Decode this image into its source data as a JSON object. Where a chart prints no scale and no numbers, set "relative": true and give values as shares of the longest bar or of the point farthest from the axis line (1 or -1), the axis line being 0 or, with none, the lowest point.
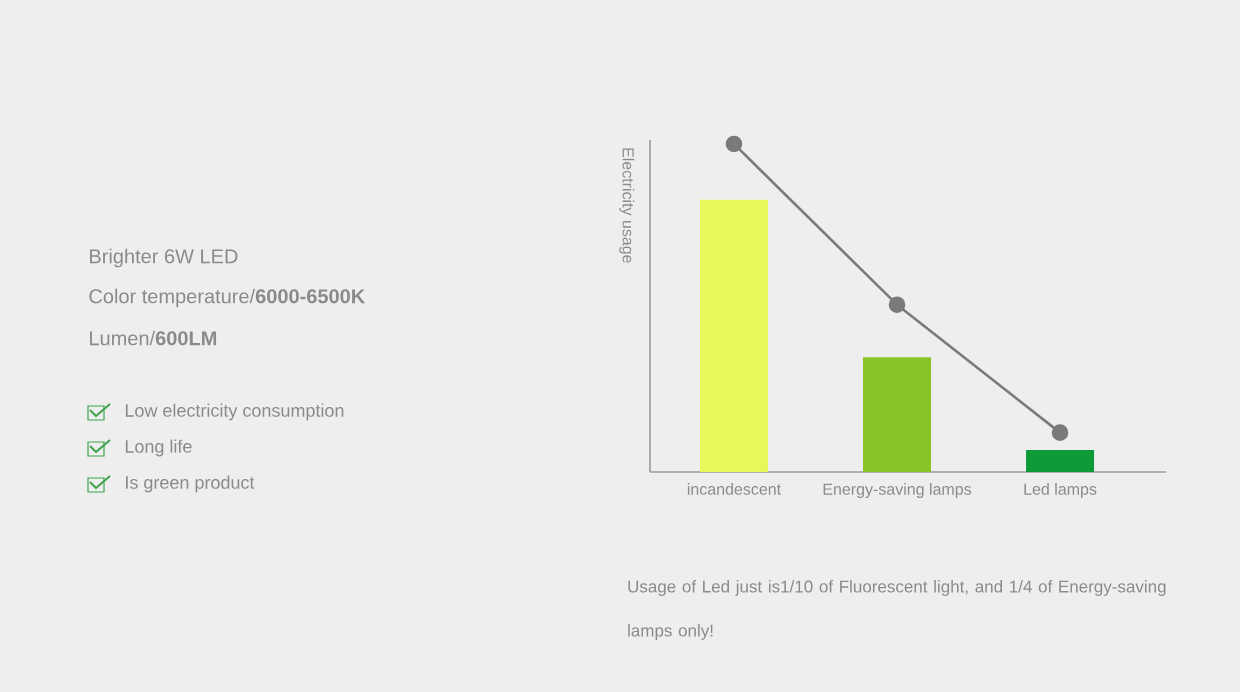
{
  "chart_data": {
    "type": "bar",
    "relative": true,
    "ylabel": "Electricity usage",
    "categories": [
      "incandescent",
      "Energy-saving lamps",
      "Led lamps"
    ],
    "series": [
      {
        "colors": [
          "#e8f75a",
          "#88c425",
          "#0f9a3a"
        ],
        "values": [
          0.83,
          0.35,
          0.067
        ]
      },
      {
        "type": "line",
        "color": "#7a7a7a",
        "marker": "circle",
        "values": [
          1,
          0.51,
          0.12
        ]
      }
    ],
    "annotations": [
      "Brighter 6W LED",
      "Color temperature/**6000-6500K**",
      "Lumen/**600LM**",
      "Low electricity consumption",
      "Long life",
      "Is green product",
      "Usage of Led just is1/10 of Fluorescent light, and 1/4 of Energy-saving lamps only!"
    ]
  }
}
